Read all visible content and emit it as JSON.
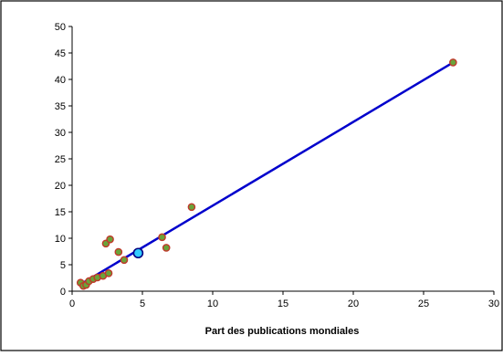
{
  "chart_data": {
    "type": "scatter",
    "xlabel": "Part des publications mondiales",
    "ylabel": "",
    "xlim": [
      0,
      30
    ],
    "ylim": [
      0,
      50
    ],
    "x_ticks": [
      "0",
      "5",
      "10",
      "15",
      "20",
      "25",
      "30"
    ],
    "y_ticks": [
      "0",
      "5",
      "10",
      "15",
      "20",
      "25",
      "30",
      "35",
      "40",
      "45",
      "50"
    ],
    "grid": false,
    "points": [
      {
        "x": 0.6,
        "y": 1.6
      },
      {
        "x": 0.8,
        "y": 1.0
      },
      {
        "x": 1.0,
        "y": 1.2
      },
      {
        "x": 1.2,
        "y": 1.9
      },
      {
        "x": 1.5,
        "y": 2.3
      },
      {
        "x": 1.8,
        "y": 2.6
      },
      {
        "x": 2.2,
        "y": 2.9
      },
      {
        "x": 2.4,
        "y": 9.0
      },
      {
        "x": 2.6,
        "y": 3.4
      },
      {
        "x": 2.7,
        "y": 9.8
      },
      {
        "x": 3.3,
        "y": 7.4
      },
      {
        "x": 3.7,
        "y": 5.9
      },
      {
        "x": 6.4,
        "y": 10.2
      },
      {
        "x": 6.7,
        "y": 8.2
      },
      {
        "x": 8.5,
        "y": 15.9
      },
      {
        "x": 27.1,
        "y": 43.2
      }
    ],
    "highlight_point": {
      "x": 4.7,
      "y": 7.2
    },
    "trendline": {
      "x": [
        0.6,
        27.1
      ],
      "y": [
        1.3,
        43.2
      ]
    },
    "colors": {
      "marker_fill": "#6aa33a",
      "marker_edge": "#c0392b",
      "highlight_fill": "#33ccff",
      "highlight_edge": "#000080",
      "trendline": "#0000cc"
    }
  }
}
